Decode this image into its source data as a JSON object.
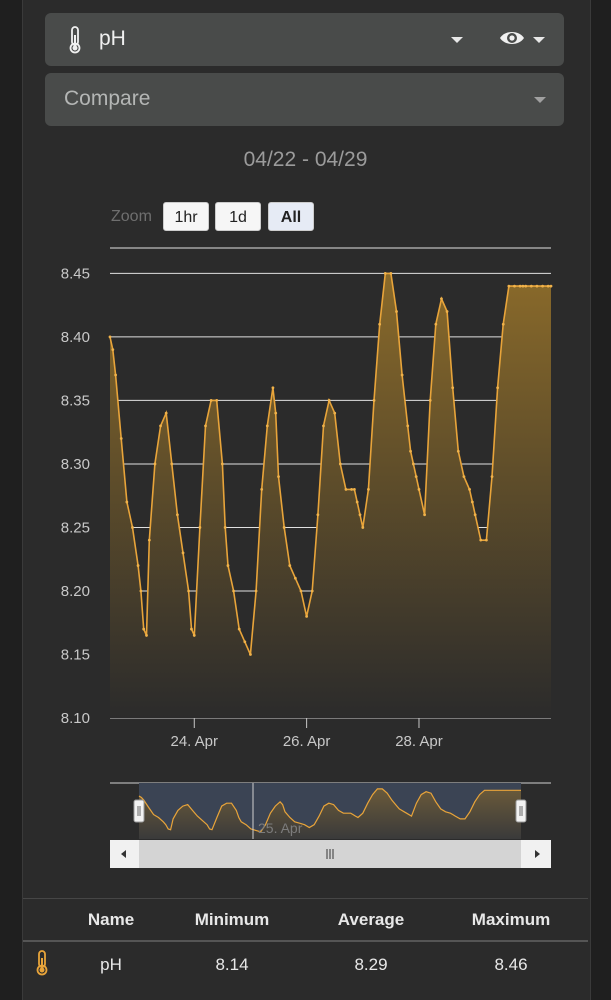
{
  "metric_select": {
    "label": "pH",
    "icon": "thermometer-icon"
  },
  "visibility_toggle": {
    "icon": "eye-icon"
  },
  "compare_select": {
    "placeholder": "Compare"
  },
  "date_range": "04/22 - 04/29",
  "zoom": {
    "label": "Zoom",
    "buttons": [
      "1hr",
      "1d",
      "All"
    ],
    "selected": "All"
  },
  "chart_data": {
    "type": "area",
    "series": [
      {
        "x": [
          22.5,
          22.55,
          22.6,
          22.7,
          22.8,
          22.9,
          23.0,
          23.05,
          23.1,
          23.15,
          23.2,
          23.3,
          23.4,
          23.5,
          23.6,
          23.7,
          23.8,
          23.9,
          23.95,
          24.0,
          24.1,
          24.2,
          24.3,
          24.4,
          24.5,
          24.55,
          24.6,
          24.7,
          24.8,
          24.9,
          25.0,
          25.1,
          25.2,
          25.3,
          25.4,
          25.45,
          25.5,
          25.6,
          25.7,
          25.8,
          25.9,
          26.0,
          26.1,
          26.2,
          26.3,
          26.4,
          26.5,
          26.6,
          26.7,
          26.8,
          26.85,
          26.9,
          26.95,
          27.0,
          27.1,
          27.2,
          27.3,
          27.4,
          27.5,
          27.6,
          27.7,
          27.8,
          27.85,
          27.9,
          27.95,
          28.0,
          28.1,
          28.2,
          28.3,
          28.4,
          28.5,
          28.6,
          28.7,
          28.8,
          28.9,
          28.95,
          29.0,
          29.1,
          29.2,
          29.3,
          29.4,
          29.5,
          29.6,
          29.7,
          29.8,
          29.85,
          29.9,
          30.0,
          30.1,
          30.2,
          30.3,
          30.35
        ],
        "values": [
          8.4,
          8.39,
          8.37,
          8.32,
          8.27,
          8.25,
          8.22,
          8.2,
          8.17,
          8.165,
          8.24,
          8.3,
          8.33,
          8.34,
          8.3,
          8.26,
          8.23,
          8.2,
          8.17,
          8.165,
          8.25,
          8.33,
          8.35,
          8.35,
          8.3,
          8.25,
          8.22,
          8.2,
          8.17,
          8.16,
          8.15,
          8.2,
          8.28,
          8.33,
          8.36,
          8.34,
          8.29,
          8.25,
          8.22,
          8.21,
          8.2,
          8.18,
          8.2,
          8.26,
          8.33,
          8.35,
          8.34,
          8.3,
          8.28,
          8.28,
          8.28,
          8.27,
          8.26,
          8.25,
          8.28,
          8.35,
          8.41,
          8.45,
          8.45,
          8.42,
          8.37,
          8.33,
          8.31,
          8.3,
          8.29,
          8.28,
          8.26,
          8.35,
          8.41,
          8.43,
          8.42,
          8.36,
          8.31,
          8.29,
          8.28,
          8.27,
          8.26,
          8.24,
          8.24,
          8.29,
          8.36,
          8.41,
          8.44,
          8.44,
          8.44,
          8.44,
          8.44,
          8.44,
          8.44,
          8.44,
          8.44,
          8.44
        ]
      }
    ],
    "ylim": [
      8.1,
      8.47
    ],
    "yticks": [
      "8.10",
      "8.15",
      "8.20",
      "8.25",
      "8.30",
      "8.35",
      "8.40",
      "8.45"
    ],
    "xticks": [
      "24. Apr",
      "26. Apr",
      "28. Apr"
    ],
    "navigator_label": "25. Apr",
    "color": "#e8a43a"
  },
  "table": {
    "headers": [
      "Name",
      "Minimum",
      "Average",
      "Maximum"
    ],
    "rows": [
      {
        "icon": "thermometer-icon",
        "name": "pH",
        "min": "8.14",
        "avg": "8.29",
        "max": "8.46"
      }
    ]
  }
}
